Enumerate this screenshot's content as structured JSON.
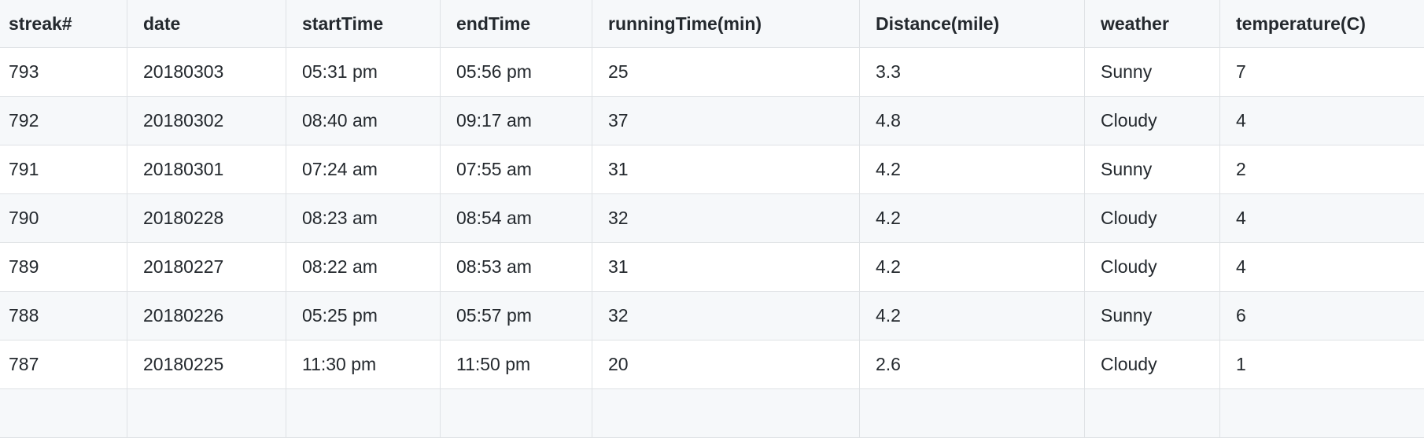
{
  "table": {
    "headers": [
      "streak#",
      "date",
      "startTime",
      "endTime",
      "runningTime(min)",
      "Distance(mile)",
      "weather",
      "temperature(C)"
    ],
    "rows": [
      [
        "793",
        "20180303",
        "05:31 pm",
        "05:56 pm",
        "25",
        "3.3",
        "Sunny",
        "7"
      ],
      [
        "792",
        "20180302",
        "08:40 am",
        "09:17 am",
        "37",
        "4.8",
        "Cloudy",
        "4"
      ],
      [
        "791",
        "20180301",
        "07:24 am",
        "07:55 am",
        "31",
        "4.2",
        "Sunny",
        "2"
      ],
      [
        "790",
        "20180228",
        "08:23 am",
        "08:54 am",
        "32",
        "4.2",
        "Cloudy",
        "4"
      ],
      [
        "789",
        "20180227",
        "08:22 am",
        "08:53 am",
        "31",
        "4.2",
        "Cloudy",
        "4"
      ],
      [
        "788",
        "20180226",
        "05:25 pm",
        "05:57 pm",
        "32",
        "4.2",
        "Sunny",
        "6"
      ],
      [
        "787",
        "20180225",
        "11:30 pm",
        "11:50 pm",
        "20",
        "2.6",
        "Cloudy",
        "1"
      ],
      [
        "",
        "",
        "",
        "",
        "",
        "",
        "",
        ""
      ]
    ]
  },
  "colors": {
    "border": "#dfe2e5",
    "header_bg": "#f6f8fa",
    "stripe_bg": "#f6f8fa",
    "text": "#24292e"
  }
}
